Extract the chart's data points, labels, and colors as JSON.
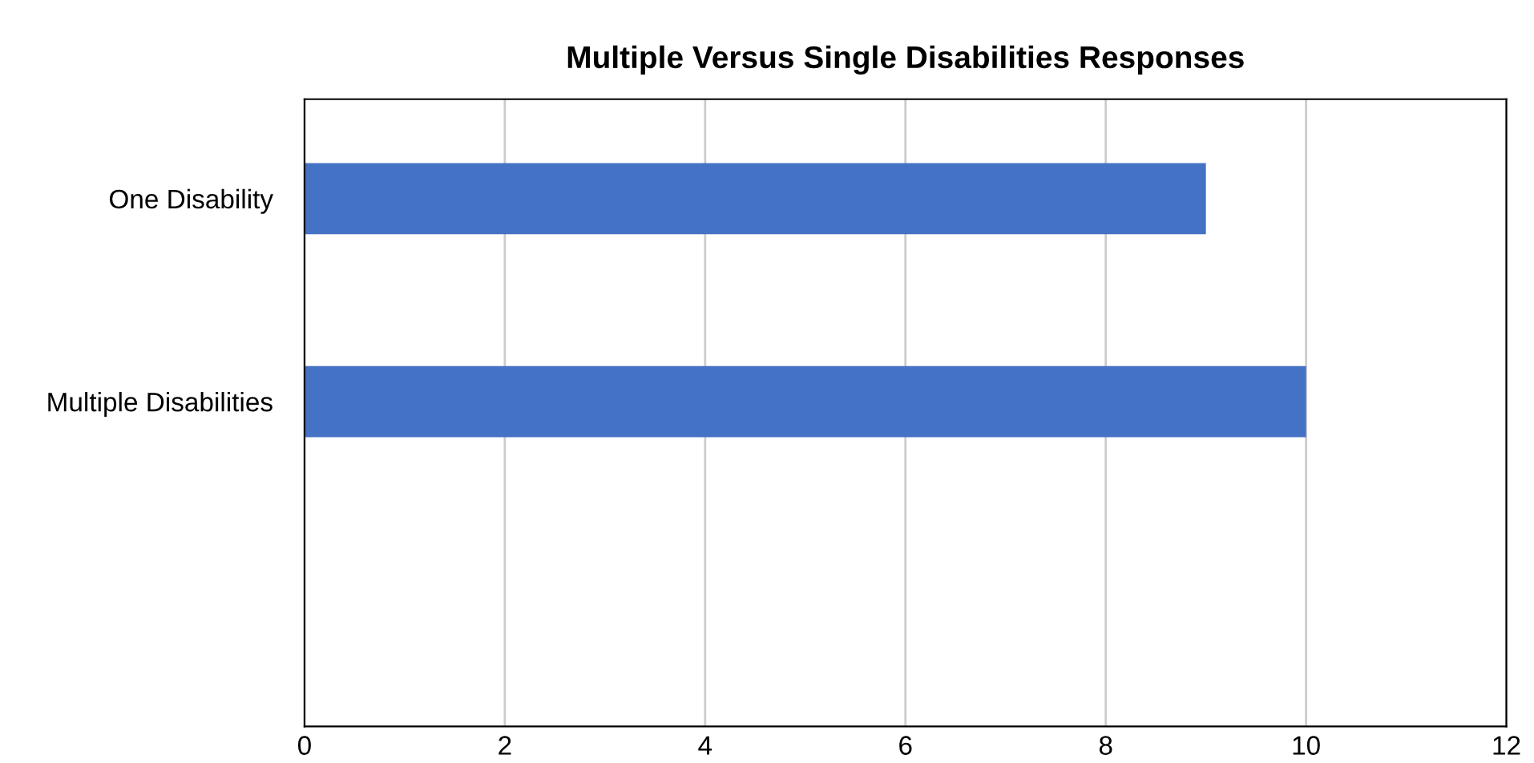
{
  "chart_data": {
    "type": "bar",
    "orientation": "horizontal",
    "title": "Multiple Versus Single Disabilities Responses",
    "categories": [
      "One Disability",
      "Multiple Disabilities",
      null
    ],
    "values": [
      9,
      10,
      null
    ],
    "color": "#4472c4",
    "xlim": [
      0,
      12
    ],
    "xticks": [
      0,
      2,
      4,
      6,
      8,
      10,
      12
    ],
    "grid": "x",
    "legend": false
  }
}
